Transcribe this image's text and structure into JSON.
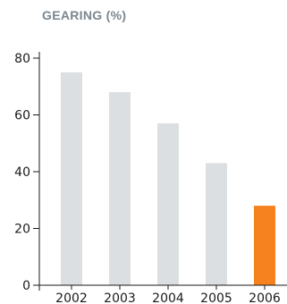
{
  "chart_data": {
    "type": "bar",
    "title": "GEARING (%)",
    "categories": [
      "2002",
      "2003",
      "2004",
      "2005",
      "2006"
    ],
    "values": [
      75,
      68,
      57,
      43,
      28
    ],
    "ylim": [
      0,
      80
    ],
    "yticks": [
      0,
      20,
      40,
      60,
      80
    ],
    "xlabel": "",
    "ylabel": "",
    "grid": false,
    "colors": {
      "default_bar": "#dcdfe1",
      "highlight_bar": "#f5821f",
      "axis": "#1a1a1a"
    },
    "highlight_index": 4
  }
}
